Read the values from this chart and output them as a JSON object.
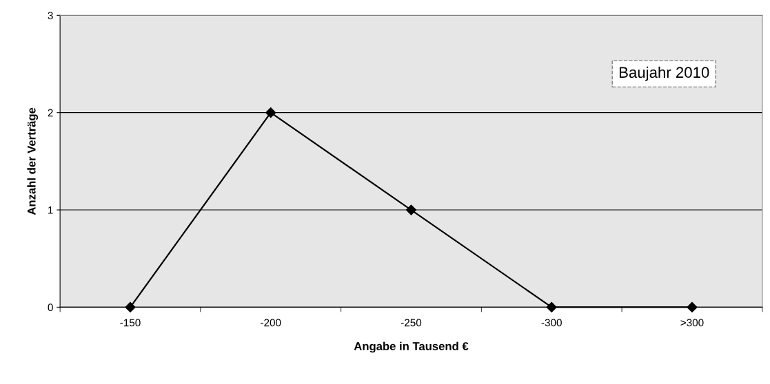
{
  "chart_data": {
    "type": "line",
    "xlabel": "Angabe in Tausend €",
    "ylabel": "Anzahl der Verträge",
    "categories": [
      "-150",
      "-200",
      "-250",
      "-300",
      ">300"
    ],
    "series": [
      {
        "color": "#000000",
        "values": [
          0,
          2,
          1,
          0,
          0
        ]
      }
    ],
    "ylim": [
      0,
      3
    ],
    "yticks": [
      0,
      1,
      2,
      3
    ],
    "grid": "y",
    "marker": "diamond",
    "line_style": "solid",
    "legend": false,
    "annotations": [
      "Baujahr 2010"
    ]
  }
}
